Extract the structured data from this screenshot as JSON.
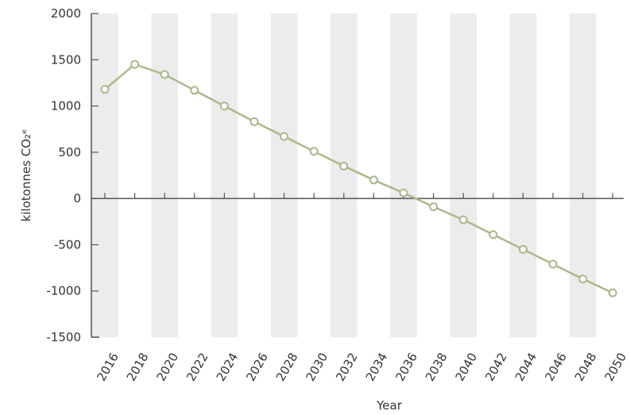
{
  "chart_data": {
    "type": "line",
    "title": "",
    "xlabel": "Year",
    "ylabel": "kilotonnes CO₂ᵉ",
    "ylim": [
      -1500,
      2000
    ],
    "yticks": [
      2000,
      1500,
      1000,
      500,
      0,
      -500,
      -1000,
      -1500
    ],
    "x": [
      2016,
      2018,
      2020,
      2022,
      2024,
      2026,
      2028,
      2030,
      2032,
      2034,
      2036,
      2038,
      2040,
      2042,
      2044,
      2046,
      2048,
      2050
    ],
    "xtick_labels": [
      "2016",
      "2018",
      "2020",
      "2022",
      "2024",
      "2026",
      "2028",
      "2030",
      "2032",
      "2034",
      "2036",
      "2038",
      "2040",
      "2042",
      "2044",
      "2046",
      "2048",
      "2050"
    ],
    "series": [
      {
        "values": [
          1180,
          1450,
          1340,
          1170,
          1000,
          830,
          670,
          510,
          350,
          200,
          60,
          -90,
          -230,
          -390,
          -550,
          -710,
          -870,
          -1020
        ]
      }
    ],
    "grid": "alternating vertical bands",
    "line_color": "#a9b98a",
    "band_color": "#ececec",
    "axis_color": "#555555"
  }
}
